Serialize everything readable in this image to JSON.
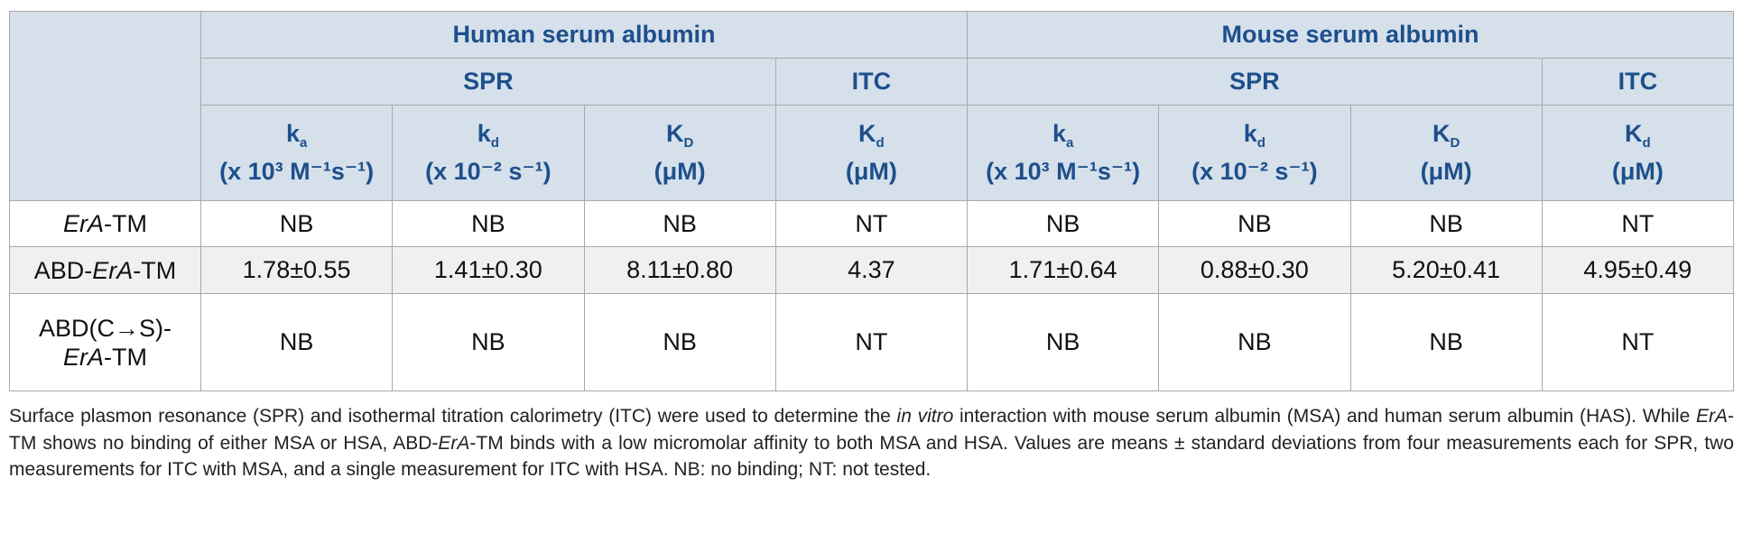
{
  "table": {
    "groups": [
      "Human serum albumin",
      "Mouse serum albumin"
    ],
    "methods": [
      "SPR",
      "ITC",
      "SPR",
      "ITC"
    ],
    "columns": [
      {
        "symbol": "k",
        "sub": "a",
        "unit": "(x 10³ M⁻¹s⁻¹)"
      },
      {
        "symbol": "k",
        "sub": "d",
        "unit": "(x 10⁻² s⁻¹)"
      },
      {
        "symbol": "K",
        "sub": "D",
        "unit": "(μM)"
      },
      {
        "symbol": "K",
        "sub": "d",
        "unit": "(μM)"
      },
      {
        "symbol": "k",
        "sub": "a",
        "unit": "(x 10³ M⁻¹s⁻¹)"
      },
      {
        "symbol": "k",
        "sub": "d",
        "unit": "(x 10⁻² s⁻¹)"
      },
      {
        "symbol": "K",
        "sub": "D",
        "unit": "(μM)"
      },
      {
        "symbol": "K",
        "sub": "d",
        "unit": "(μM)"
      }
    ],
    "rows": [
      {
        "label": [
          {
            "text": "ErA",
            "italic": true
          },
          {
            "text": "-TM"
          }
        ],
        "cells": [
          "NB",
          "NB",
          "NB",
          "NT",
          "NB",
          "NB",
          "NB",
          "NT"
        ]
      },
      {
        "label": [
          {
            "text": "ABD-"
          },
          {
            "text": "ErA",
            "italic": true
          },
          {
            "text": "-TM"
          }
        ],
        "cells": [
          "1.78±0.55",
          "1.41±0.30",
          "8.11±0.80",
          "4.37",
          "1.71±0.64",
          "0.88±0.30",
          "5.20±0.41",
          "4.95±0.49"
        ]
      },
      {
        "label": [
          {
            "text": "ABD(C→S)-"
          },
          {
            "text": "ErA",
            "italic": true
          },
          {
            "text": "-TM"
          }
        ],
        "cells": [
          "NB",
          "NB",
          "NB",
          "NT",
          "NB",
          "NB",
          "NB",
          "NT"
        ]
      }
    ]
  },
  "caption": [
    {
      "text": "Surface plasmon resonance (SPR) and isothermal titration calorimetry (ITC) were used to determine the "
    },
    {
      "text": "in vitro",
      "italic": true
    },
    {
      "text": " interaction with mouse serum albumin (MSA) and human serum albumin (HAS). While "
    },
    {
      "text": "ErA",
      "italic": true
    },
    {
      "text": "-TM shows no binding of either MSA or HSA, ABD-"
    },
    {
      "text": "ErA",
      "italic": true
    },
    {
      "text": "-TM binds with a low micromolar affinity to both MSA and HSA. Values are means ± standard deviations from four measurements each for SPR, two measurements for ITC with MSA, and a single measurement for ITC with HSA. NB: no binding; NT: not tested."
    }
  ]
}
